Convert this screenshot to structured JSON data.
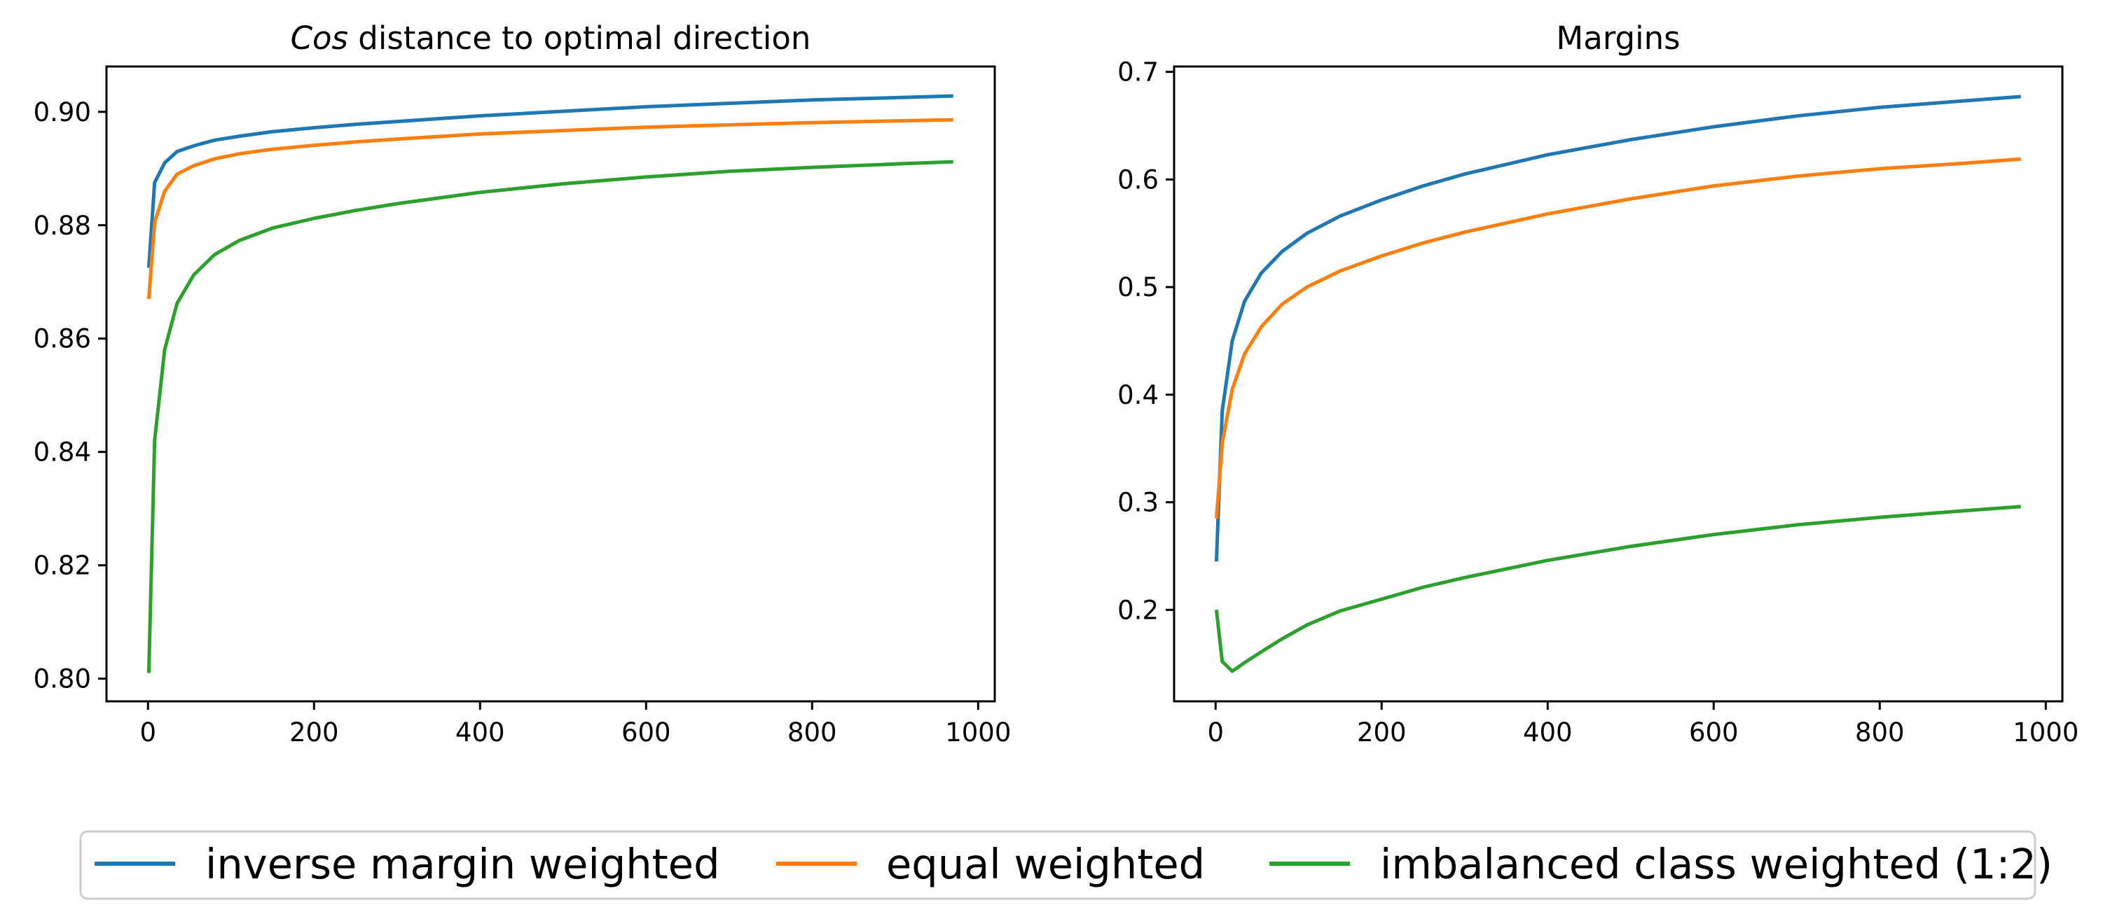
{
  "chart_data": [
    {
      "type": "line",
      "title": "Cos distance to optimal direction",
      "title_parts": [
        {
          "text": "Cos",
          "italic": true
        },
        {
          "text": " distance to optimal direction",
          "italic": false
        }
      ],
      "xlabel": "",
      "ylabel": "",
      "xlim": [
        -50,
        1020
      ],
      "ylim": [
        0.796,
        0.908
      ],
      "x_ticks": [
        0,
        200,
        400,
        600,
        800,
        1000
      ],
      "x_tick_labels": [
        "0",
        "200",
        "400",
        "600",
        "800",
        "1000"
      ],
      "y_ticks": [
        0.8,
        0.82,
        0.84,
        0.86,
        0.88,
        0.9
      ],
      "y_tick_labels": [
        "0.80",
        "0.82",
        "0.84",
        "0.86",
        "0.88",
        "0.90"
      ],
      "grid": false,
      "series": [
        {
          "name": "inverse margin weighted",
          "color": "#1f77b4",
          "points": [
            [
              1,
              0.8725
            ],
            [
              8,
              0.8875
            ],
            [
              20,
              0.891
            ],
            [
              35,
              0.893
            ],
            [
              55,
              0.894
            ],
            [
              80,
              0.895
            ],
            [
              110,
              0.8957
            ],
            [
              150,
              0.8965
            ],
            [
              200,
              0.8972
            ],
            [
              250,
              0.8978
            ],
            [
              300,
              0.8983
            ],
            [
              400,
              0.8993
            ],
            [
              500,
              0.9001
            ],
            [
              600,
              0.9009
            ],
            [
              700,
              0.9015
            ],
            [
              800,
              0.9021
            ],
            [
              900,
              0.9025
            ],
            [
              970,
              0.9028
            ]
          ]
        },
        {
          "name": "equal weighted",
          "color": "#ff7f0e",
          "points": [
            [
              1,
              0.867
            ],
            [
              8,
              0.8805
            ],
            [
              20,
              0.886
            ],
            [
              35,
              0.889
            ],
            [
              55,
              0.8905
            ],
            [
              80,
              0.8917
            ],
            [
              110,
              0.8926
            ],
            [
              150,
              0.8934
            ],
            [
              200,
              0.8941
            ],
            [
              250,
              0.8947
            ],
            [
              300,
              0.8952
            ],
            [
              400,
              0.8961
            ],
            [
              500,
              0.8967
            ],
            [
              600,
              0.8973
            ],
            [
              700,
              0.8977
            ],
            [
              800,
              0.8981
            ],
            [
              900,
              0.8984
            ],
            [
              970,
              0.8986
            ]
          ]
        },
        {
          "name": "imbalanced class weighted (1:2)",
          "color": "#2ca02c",
          "points": [
            [
              1,
              0.801
            ],
            [
              8,
              0.842
            ],
            [
              20,
              0.858
            ],
            [
              35,
              0.8662
            ],
            [
              55,
              0.8712
            ],
            [
              80,
              0.8748
            ],
            [
              110,
              0.8773
            ],
            [
              150,
              0.8795
            ],
            [
              200,
              0.8812
            ],
            [
              250,
              0.8826
            ],
            [
              300,
              0.8838
            ],
            [
              400,
              0.8858
            ],
            [
              500,
              0.8873
            ],
            [
              600,
              0.8885
            ],
            [
              700,
              0.8895
            ],
            [
              800,
              0.8902
            ],
            [
              900,
              0.8908
            ],
            [
              970,
              0.8912
            ]
          ]
        }
      ]
    },
    {
      "type": "line",
      "title": "Margins",
      "title_parts": [
        {
          "text": "Margins",
          "italic": false
        }
      ],
      "xlabel": "",
      "ylabel": "",
      "xlim": [
        -50,
        1020
      ],
      "ylim": [
        0.115,
        0.705
      ],
      "x_ticks": [
        0,
        200,
        400,
        600,
        800,
        1000
      ],
      "x_tick_labels": [
        "0",
        "200",
        "400",
        "600",
        "800",
        "1000"
      ],
      "y_ticks": [
        0.2,
        0.3,
        0.4,
        0.5,
        0.6,
        0.7
      ],
      "y_tick_labels": [
        "0.2",
        "0.3",
        "0.4",
        "0.5",
        "0.6",
        "0.7"
      ],
      "grid": false,
      "series": [
        {
          "name": "inverse margin weighted",
          "color": "#1f77b4",
          "points": [
            [
              1,
              0.245
            ],
            [
              8,
              0.385
            ],
            [
              20,
              0.45
            ],
            [
              35,
              0.487
            ],
            [
              55,
              0.513
            ],
            [
              80,
              0.533
            ],
            [
              110,
              0.55
            ],
            [
              150,
              0.566
            ],
            [
              200,
              0.581
            ],
            [
              250,
              0.594
            ],
            [
              300,
              0.605
            ],
            [
              400,
              0.623
            ],
            [
              500,
              0.637
            ],
            [
              600,
              0.649
            ],
            [
              700,
              0.659
            ],
            [
              800,
              0.667
            ],
            [
              900,
              0.673
            ],
            [
              970,
              0.677
            ]
          ]
        },
        {
          "name": "equal weighted",
          "color": "#ff7f0e",
          "points": [
            [
              1,
              0.285
            ],
            [
              8,
              0.355
            ],
            [
              20,
              0.405
            ],
            [
              35,
              0.438
            ],
            [
              55,
              0.463
            ],
            [
              80,
              0.484
            ],
            [
              110,
              0.5
            ],
            [
              150,
              0.515
            ],
            [
              200,
              0.529
            ],
            [
              250,
              0.541
            ],
            [
              300,
              0.551
            ],
            [
              400,
              0.568
            ],
            [
              500,
              0.582
            ],
            [
              600,
              0.594
            ],
            [
              700,
              0.603
            ],
            [
              800,
              0.61
            ],
            [
              900,
              0.615
            ],
            [
              970,
              0.619
            ]
          ]
        },
        {
          "name": "imbalanced class weighted (1:2)",
          "color": "#2ca02c",
          "points": [
            [
              1,
              0.2
            ],
            [
              8,
              0.152
            ],
            [
              20,
              0.143
            ],
            [
              35,
              0.151
            ],
            [
              55,
              0.161
            ],
            [
              80,
              0.173
            ],
            [
              110,
              0.186
            ],
            [
              150,
              0.199
            ],
            [
              200,
              0.21
            ],
            [
              250,
              0.221
            ],
            [
              300,
              0.23
            ],
            [
              400,
              0.246
            ],
            [
              500,
              0.259
            ],
            [
              600,
              0.27
            ],
            [
              700,
              0.279
            ],
            [
              800,
              0.286
            ],
            [
              900,
              0.292
            ],
            [
              970,
              0.296
            ]
          ]
        }
      ]
    }
  ],
  "legend": {
    "placement": "bottom-center",
    "entries": [
      {
        "label": "inverse margin weighted",
        "color": "#1f77b4"
      },
      {
        "label": "equal weighted",
        "color": "#ff7f0e"
      },
      {
        "label": "imbalanced class weighted (1:2)",
        "color": "#2ca02c"
      }
    ]
  }
}
